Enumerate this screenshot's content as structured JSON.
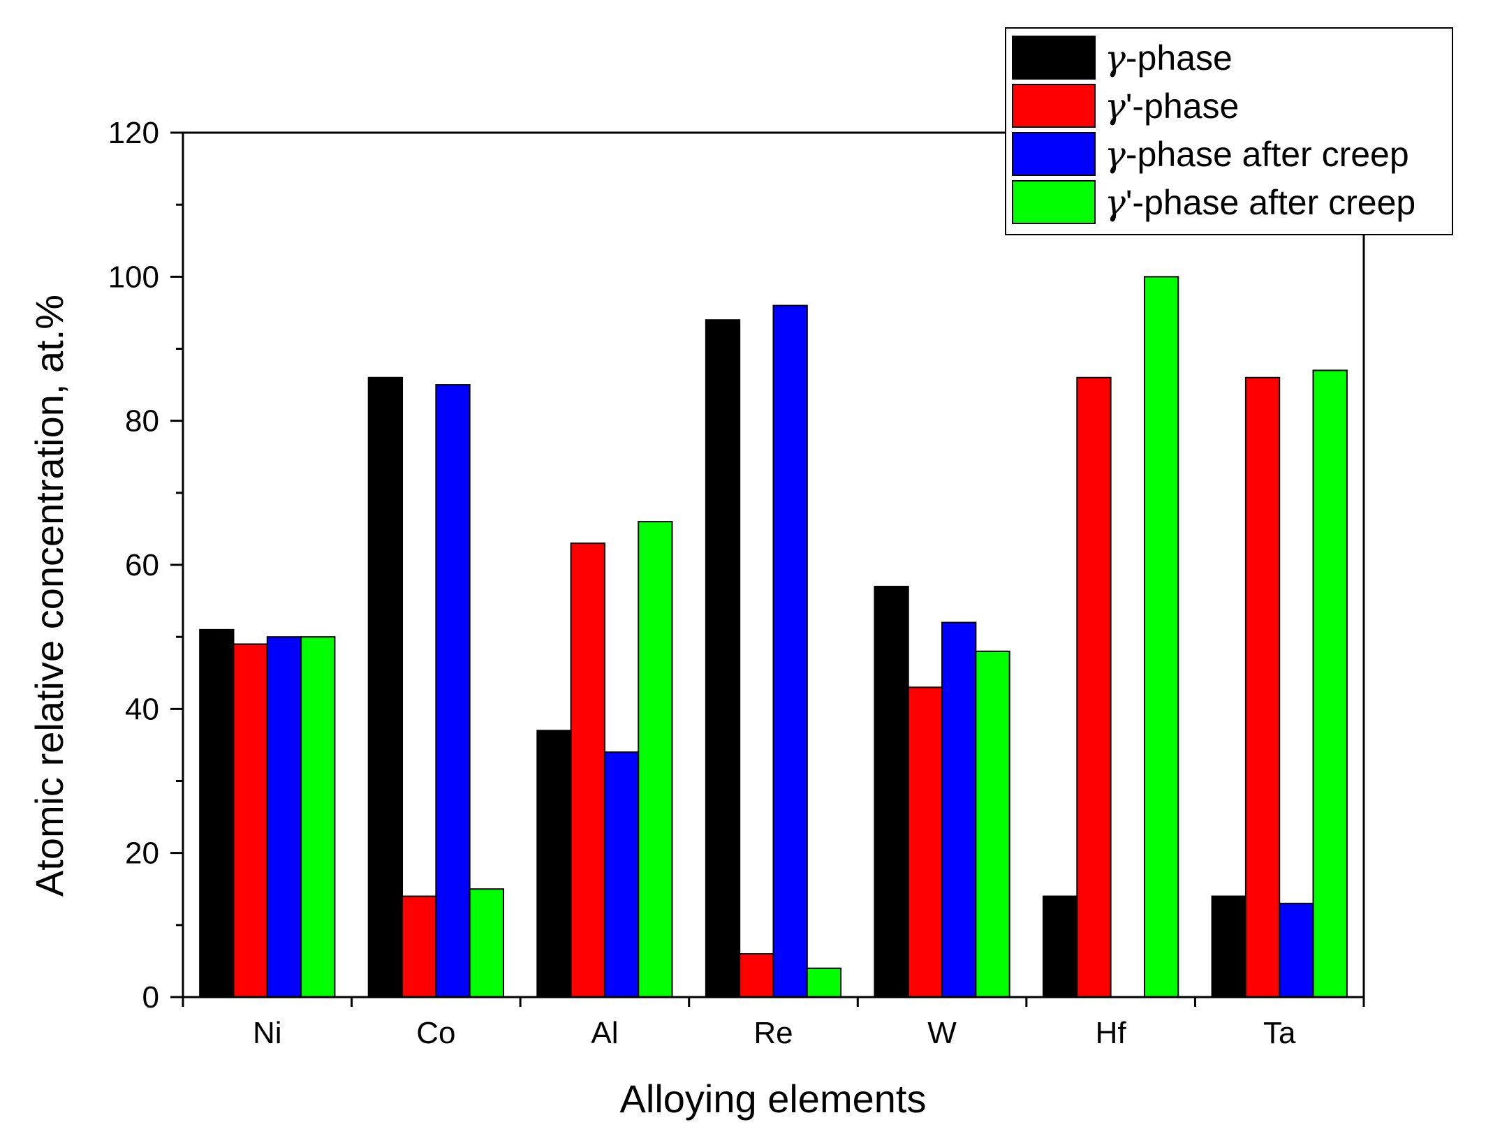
{
  "chart_data": {
    "type": "bar",
    "title": "",
    "xlabel": "Alloying elements",
    "ylabel": "Atomic relative concentration, at.%",
    "ylim": [
      0,
      120
    ],
    "yticks": [
      "0",
      "20",
      "40",
      "60",
      "80",
      "100",
      "120"
    ],
    "categories": [
      "Ni",
      "Co",
      "Al",
      "Re",
      "W",
      "Hf",
      "Ta"
    ],
    "legend_position": "top-right",
    "grid": false,
    "series": [
      {
        "name": "γ-phase",
        "color": "#000000",
        "values": [
          51,
          86,
          37,
          94,
          57,
          14,
          14
        ]
      },
      {
        "name": "γ'-phase",
        "color": "#ff0000",
        "values": [
          49,
          14,
          63,
          6,
          43,
          86,
          86
        ]
      },
      {
        "name": "γ-phase after creep",
        "color": "#0000ff",
        "values": [
          50,
          85,
          34,
          96,
          52,
          0,
          13
        ]
      },
      {
        "name": "γ'-phase after creep",
        "color": "#00ff00",
        "values": [
          50,
          15,
          66,
          4,
          48,
          100,
          87
        ]
      }
    ]
  }
}
